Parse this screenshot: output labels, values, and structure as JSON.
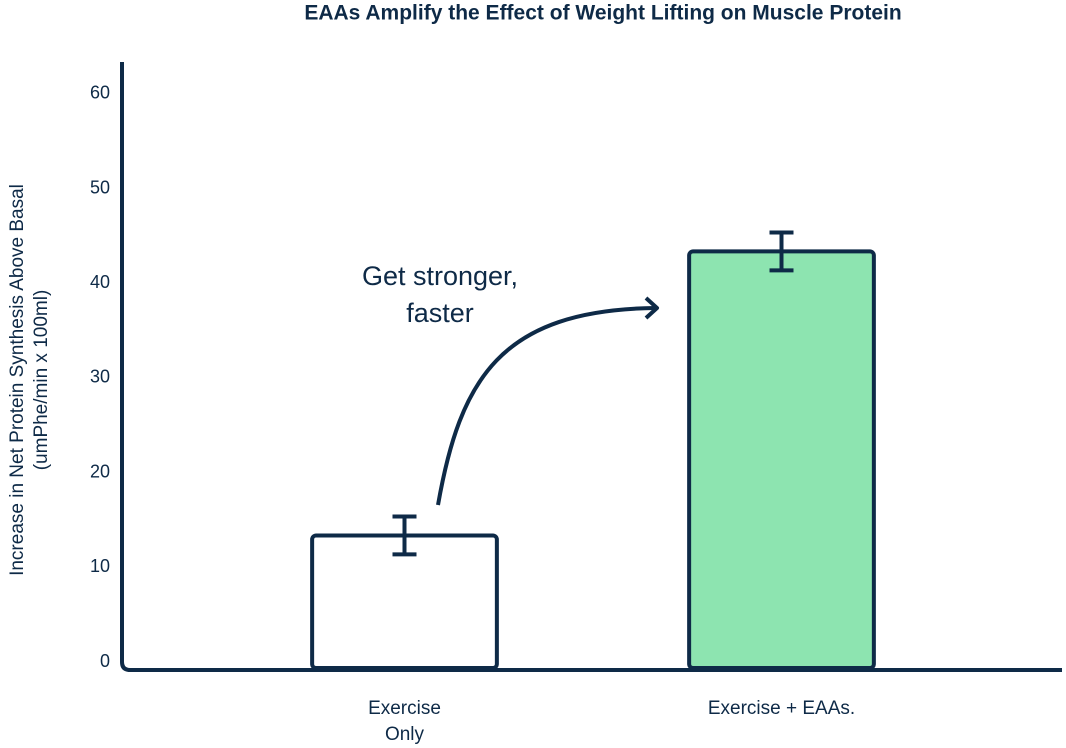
{
  "chart_data": {
    "type": "bar",
    "title": "EAAs Amplify the Effect of Weight Lifting on Muscle Protein",
    "ylabel": [
      "Increase in Net Protein Synthesis Above Basal",
      "(umPhe/min x 100ml)"
    ],
    "categories": [
      "Exercise Only",
      "Exercise + EAAs."
    ],
    "values": [
      14,
      44
    ],
    "errors": [
      2,
      2
    ],
    "colors": [
      "#ffffff",
      "#8de4b0"
    ],
    "ylim": [
      0,
      64
    ],
    "yticks": [
      0,
      10,
      20,
      30,
      40,
      50,
      60
    ],
    "annotation": "Get stronger, faster"
  }
}
